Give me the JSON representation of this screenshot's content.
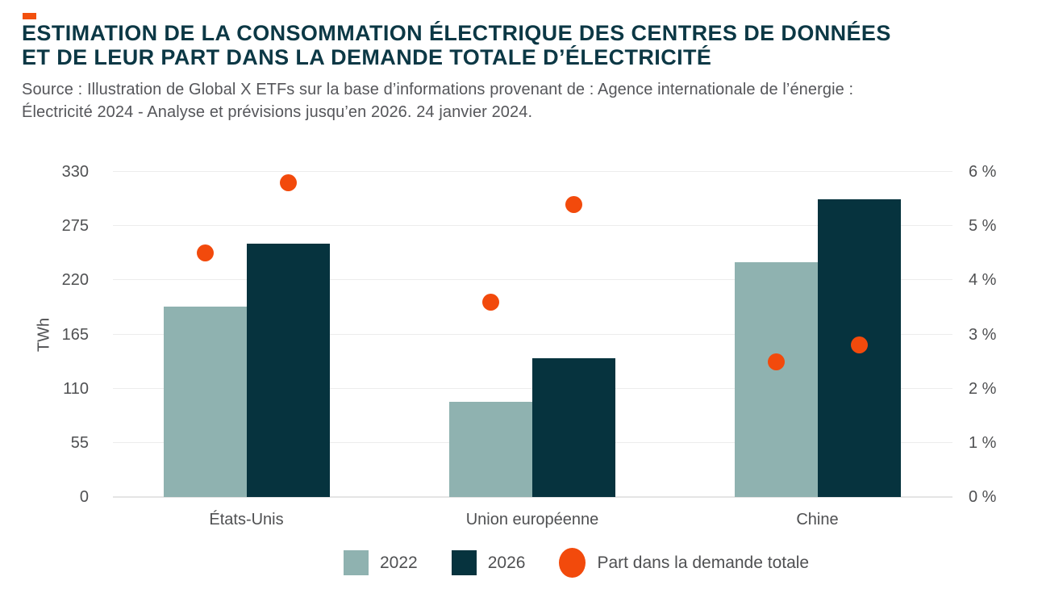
{
  "header": {
    "accent_color": "#F2500D",
    "title_line1": "ESTIMATION DE LA CONSOMMATION ÉLECTRIQUE DES CENTRES DE DONNÉES",
    "title_line2": "ET DE LEUR PART DANS LA DEMANDE TOTALE D’ÉLECTRICITÉ",
    "source_line1": "Source : Illustration de Global X ETFs sur la base d’informations provenant de : Agence internationale de l’énergie :",
    "source_line2": "Électricité 2024 - Analyse et prévisions jusqu’en 2026. 24 janvier 2024."
  },
  "chart_data": {
    "type": "bar",
    "title": "Estimation de la consommation électrique des centres de données et de leur part dans la demande totale d’électricité",
    "categories": [
      "États-Unis",
      "Union européenne",
      "Chine"
    ],
    "series": [
      {
        "name": "2022",
        "type": "bar",
        "axis": "left",
        "color": "#8FB2B0",
        "values_twh": [
          193,
          97,
          238
        ]
      },
      {
        "name": "2026",
        "type": "bar",
        "axis": "left",
        "color": "#06333E",
        "values_twh": [
          257,
          141,
          302
        ]
      }
    ],
    "dots": {
      "name": "Part dans la demande totale",
      "type": "scatter",
      "axis": "right",
      "color": "#F24A0C",
      "values_pct": {
        "2022": [
          4.5,
          3.6,
          2.5
        ],
        "2026": [
          5.8,
          5.4,
          2.8
        ]
      }
    },
    "left_axis": {
      "label": "TWh",
      "ticks": [
        330,
        275,
        220,
        165,
        110,
        55,
        0
      ],
      "range": [
        0,
        330
      ]
    },
    "right_axis": {
      "ticks": [
        6,
        5,
        4,
        3,
        2,
        1,
        0
      ],
      "tick_labels": [
        "6 %",
        "5 %",
        "4 %",
        "3 %",
        "2 %",
        "1 %",
        "0 %"
      ],
      "range": [
        0,
        6
      ]
    },
    "grid": true,
    "legend_position": "bottom"
  }
}
